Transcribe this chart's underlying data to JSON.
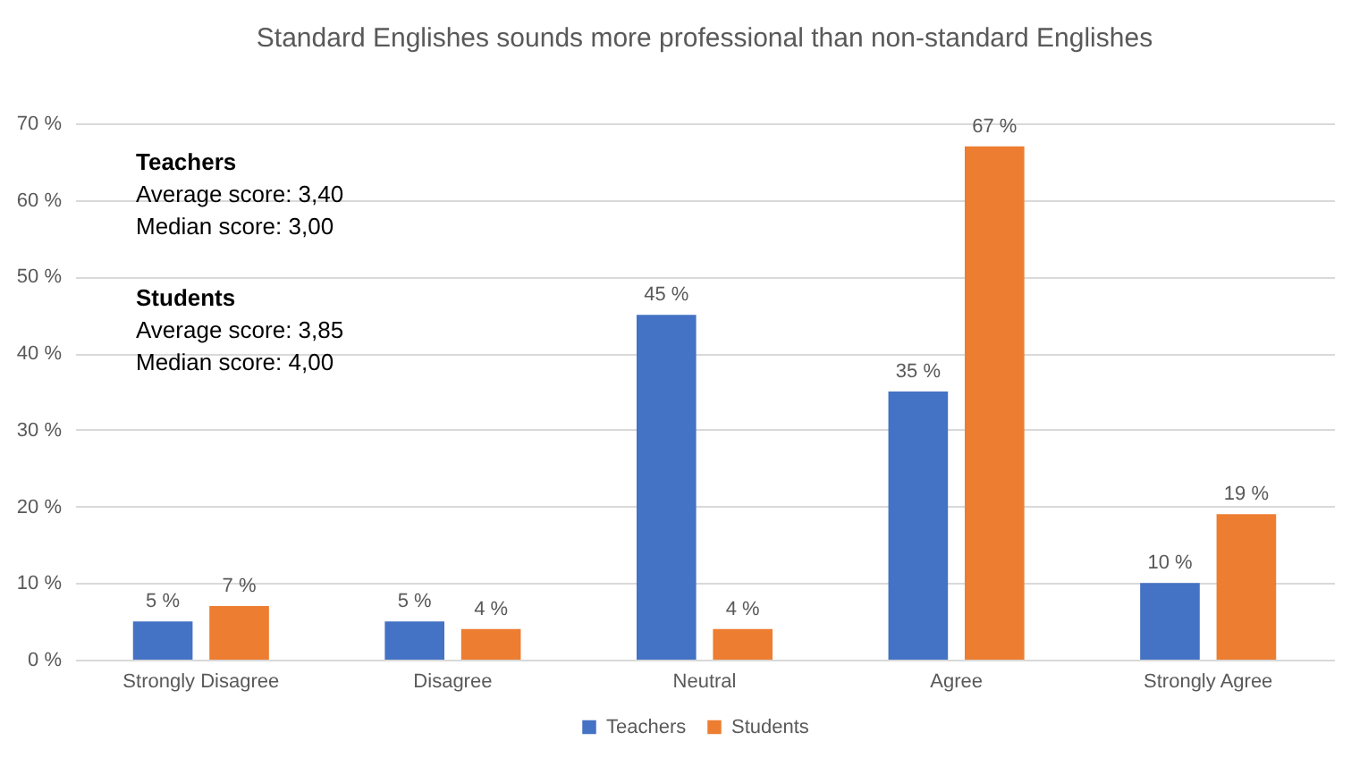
{
  "chart_data": {
    "type": "bar",
    "title": "Standard Englishes sounds more professional than non-standard Englishes",
    "categories": [
      "Strongly Disagree",
      "Disagree",
      "Neutral",
      "Agree",
      "Strongly Agree"
    ],
    "series": [
      {
        "name": "Teachers",
        "color": "#4472c4",
        "values": [
          5,
          5,
          45,
          35,
          10
        ],
        "value_labels": [
          "5 %",
          "5 %",
          "45 %",
          "35 %",
          "10 %"
        ]
      },
      {
        "name": "Students",
        "color": "#ed7d31",
        "values": [
          7,
          4,
          4,
          67,
          19
        ],
        "value_labels": [
          "7 %",
          "4 %",
          "4 %",
          "67 %",
          "19 %"
        ]
      }
    ],
    "ylim": [
      0,
      70
    ],
    "yticks": [
      {
        "value": 0,
        "label": "0 %"
      },
      {
        "value": 10,
        "label": "10 %"
      },
      {
        "value": 20,
        "label": "20 %"
      },
      {
        "value": 30,
        "label": "30 %"
      },
      {
        "value": 40,
        "label": "40 %"
      },
      {
        "value": 50,
        "label": "50 %"
      },
      {
        "value": 60,
        "label": "60 %"
      },
      {
        "value": 70,
        "label": "70 %"
      }
    ],
    "annotations": [
      "Teachers",
      "Average score: 3,40",
      "Median score: 3,00",
      "Students",
      "Average score: 3,85",
      "Median score: 4,00"
    ],
    "grid": "y",
    "legend": "bottom"
  }
}
